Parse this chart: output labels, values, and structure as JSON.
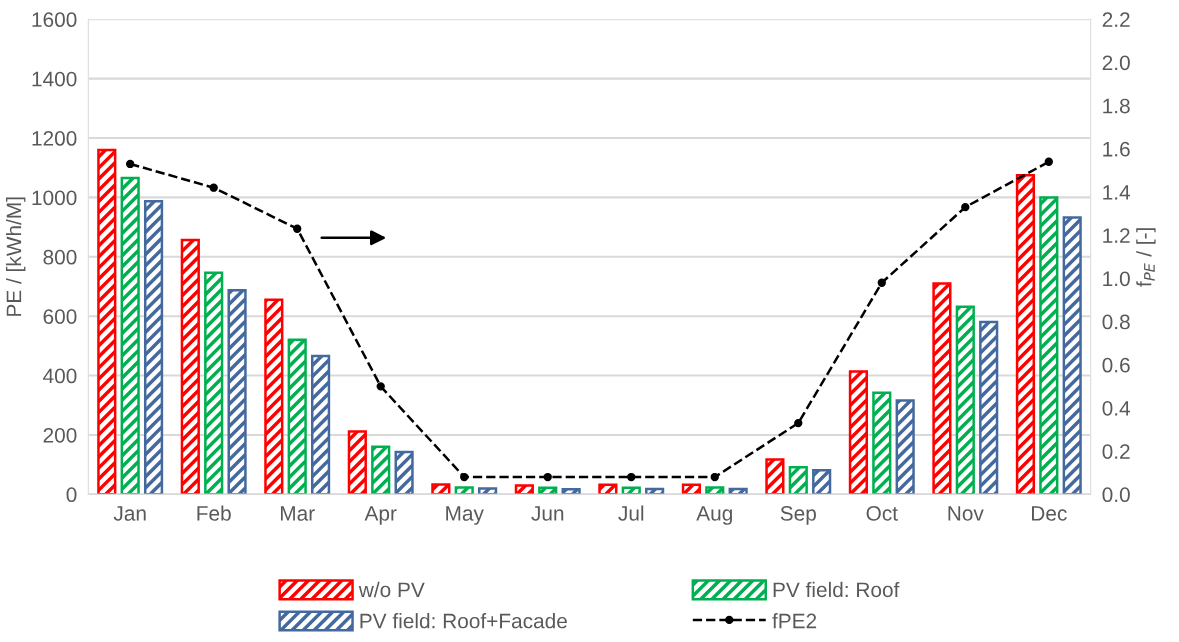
{
  "chart_data": {
    "type": "bar",
    "categories": [
      "Jan",
      "Feb",
      "Mar",
      "Apr",
      "May",
      "Jun",
      "Jul",
      "Aug",
      "Sep",
      "Oct",
      "Nov",
      "Dec"
    ],
    "series": [
      {
        "name": "w/o PV",
        "color": "#ff0000",
        "values": [
          1160,
          857,
          655,
          212,
          33,
          30,
          32,
          32,
          117,
          414,
          710,
          1075
        ]
      },
      {
        "name": "PV field: Roof",
        "color": "#00b050",
        "values": [
          1065,
          746,
          521,
          160,
          23,
          22,
          22,
          23,
          91,
          342,
          632,
          1000
        ]
      },
      {
        "name": "PV field: Roof+Facade",
        "color": "#44699e",
        "values": [
          987,
          687,
          466,
          143,
          20,
          17,
          18,
          18,
          81,
          316,
          580,
          932
        ]
      },
      {
        "name": "fPE2",
        "type": "line",
        "axis": "y2",
        "color": "#000000",
        "marker": "circle",
        "line_style": "dashed",
        "values": [
          1.53,
          1.42,
          1.23,
          0.5,
          0.08,
          0.08,
          0.08,
          0.08,
          0.33,
          0.98,
          1.33,
          1.54
        ]
      }
    ],
    "ylabel": "PE / [kWh/M]",
    "y2label": "f$_{PE}$ / [-]",
    "ylim": [
      0,
      1600
    ],
    "yticks": [
      0,
      200,
      400,
      600,
      800,
      1000,
      1200,
      1400,
      1600
    ],
    "y2lim": [
      0,
      2.2
    ],
    "y2ticks": [
      {
        "value": 0,
        "label": "0.0"
      },
      {
        "value": 0.2,
        "label": "0.2"
      },
      {
        "value": 0.4,
        "label": "0.4"
      },
      {
        "value": 0.6,
        "label": "0.6"
      },
      {
        "value": 0.8,
        "label": "0.8"
      },
      {
        "value": 1.0,
        "label": "1.0"
      },
      {
        "value": 1.2,
        "label": "1.2"
      },
      {
        "value": 1.4,
        "label": "1.4"
      },
      {
        "value": 1.6,
        "label": "1.6"
      },
      {
        "value": 1.8,
        "label": "1.8"
      },
      {
        "value": 2.0,
        "label": "2.0"
      },
      {
        "value": 2.2,
        "label": "2.2"
      }
    ],
    "grid": "y",
    "legend": "bottom"
  }
}
